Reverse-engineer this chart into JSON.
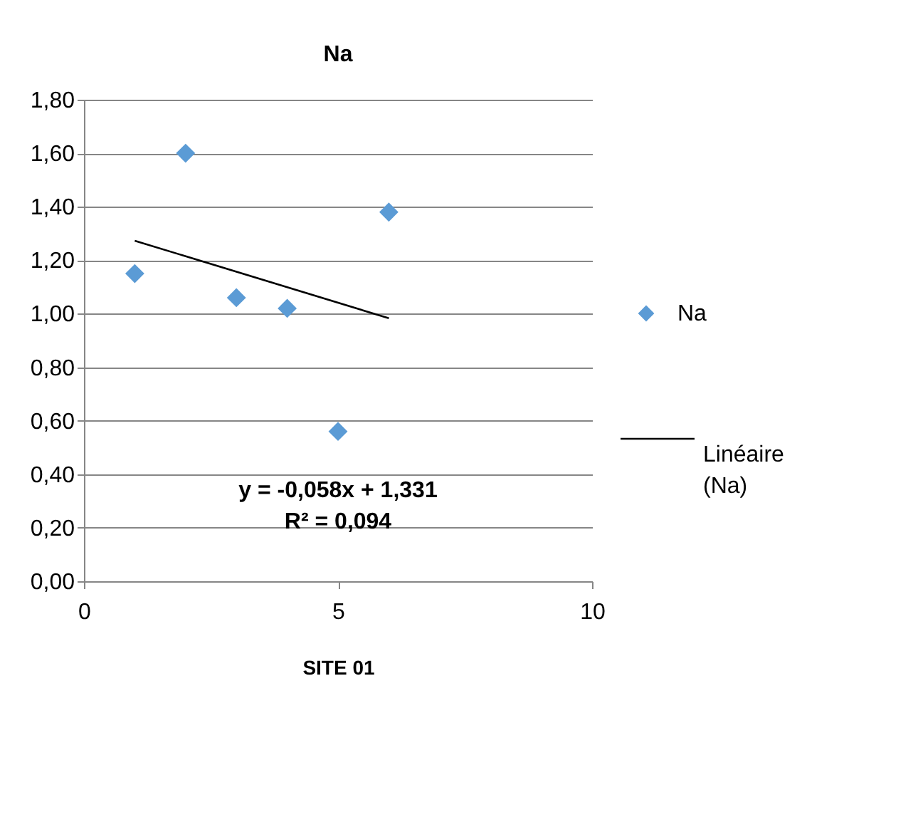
{
  "chart_data": {
    "type": "scatter",
    "title": "Na",
    "xlabel": "SITE 01",
    "x": [
      1,
      2,
      3,
      4,
      5,
      6
    ],
    "series": [
      {
        "name": "Na",
        "color": "#5b9bd5",
        "marker": "diamond",
        "values": [
          1.15,
          1.6,
          1.06,
          1.02,
          0.56,
          1.38
        ]
      },
      {
        "name": "Linéaire (Na)",
        "type": "line",
        "color": "#000000",
        "x": [
          1,
          6
        ],
        "values": [
          1.273,
          0.983
        ],
        "line_style": "solid"
      }
    ],
    "xlim": [
      0,
      10
    ],
    "xticks": [
      0,
      5,
      10
    ],
    "ylim": [
      0,
      1.8
    ],
    "yticks": [
      {
        "value": 0,
        "label": "0,00"
      },
      {
        "value": 0.2,
        "label": "0,20"
      },
      {
        "value": 0.4,
        "label": "0,40"
      },
      {
        "value": 0.6,
        "label": "0,60"
      },
      {
        "value": 0.8,
        "label": "0,80"
      },
      {
        "value": 1.0,
        "label": "1,00"
      },
      {
        "value": 1.2,
        "label": "1,20"
      },
      {
        "value": 1.4,
        "label": "1,40"
      },
      {
        "value": 1.6,
        "label": "1,60"
      },
      {
        "value": 1.8,
        "label": "1,80"
      }
    ],
    "annotations": [
      "y = -0,058x + 1,331",
      "R² = 0,094"
    ],
    "grid": "y",
    "legend": "right"
  }
}
